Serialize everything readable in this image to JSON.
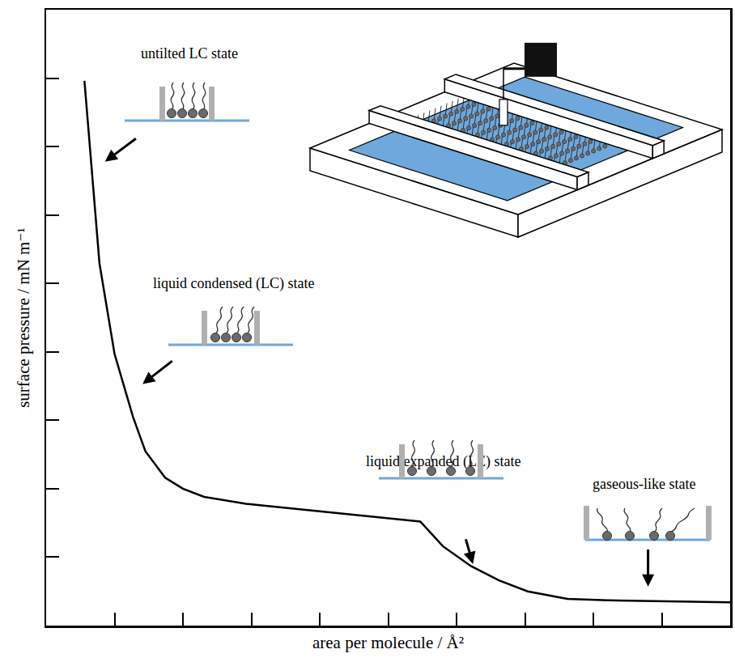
{
  "chart_data": {
    "type": "line",
    "x_label": "area per molecule / Å²",
    "y_label": "surface pressure / mN m⁻¹",
    "x": [
      0.56,
      0.78,
      1.0,
      1.27,
      1.45,
      1.74,
      2.0,
      2.31,
      2.92,
      4.09,
      5.47,
      5.8,
      6.21,
      6.62,
      7.04,
      7.62,
      8.21,
      10.0
    ],
    "values": [
      7.96,
      5.29,
      3.97,
      3.05,
      2.55,
      2.16,
      2.0,
      1.88,
      1.78,
      1.66,
      1.52,
      1.16,
      0.87,
      0.66,
      0.5,
      0.39,
      0.37,
      0.34
    ],
    "color": "#000000",
    "xlim": [
      0,
      10
    ],
    "ylim": [
      0,
      9
    ],
    "xticks": [
      1,
      2,
      3,
      4,
      5,
      6,
      7,
      8,
      9
    ],
    "yticks": [
      1,
      2,
      3,
      4,
      5,
      6,
      7,
      8
    ],
    "tick_labels": false,
    "grid": false,
    "annotations": [
      "untilted LC state",
      "liquid condensed (LC) state",
      "liquid expanded (LE) state",
      "gaseous-like state"
    ]
  }
}
